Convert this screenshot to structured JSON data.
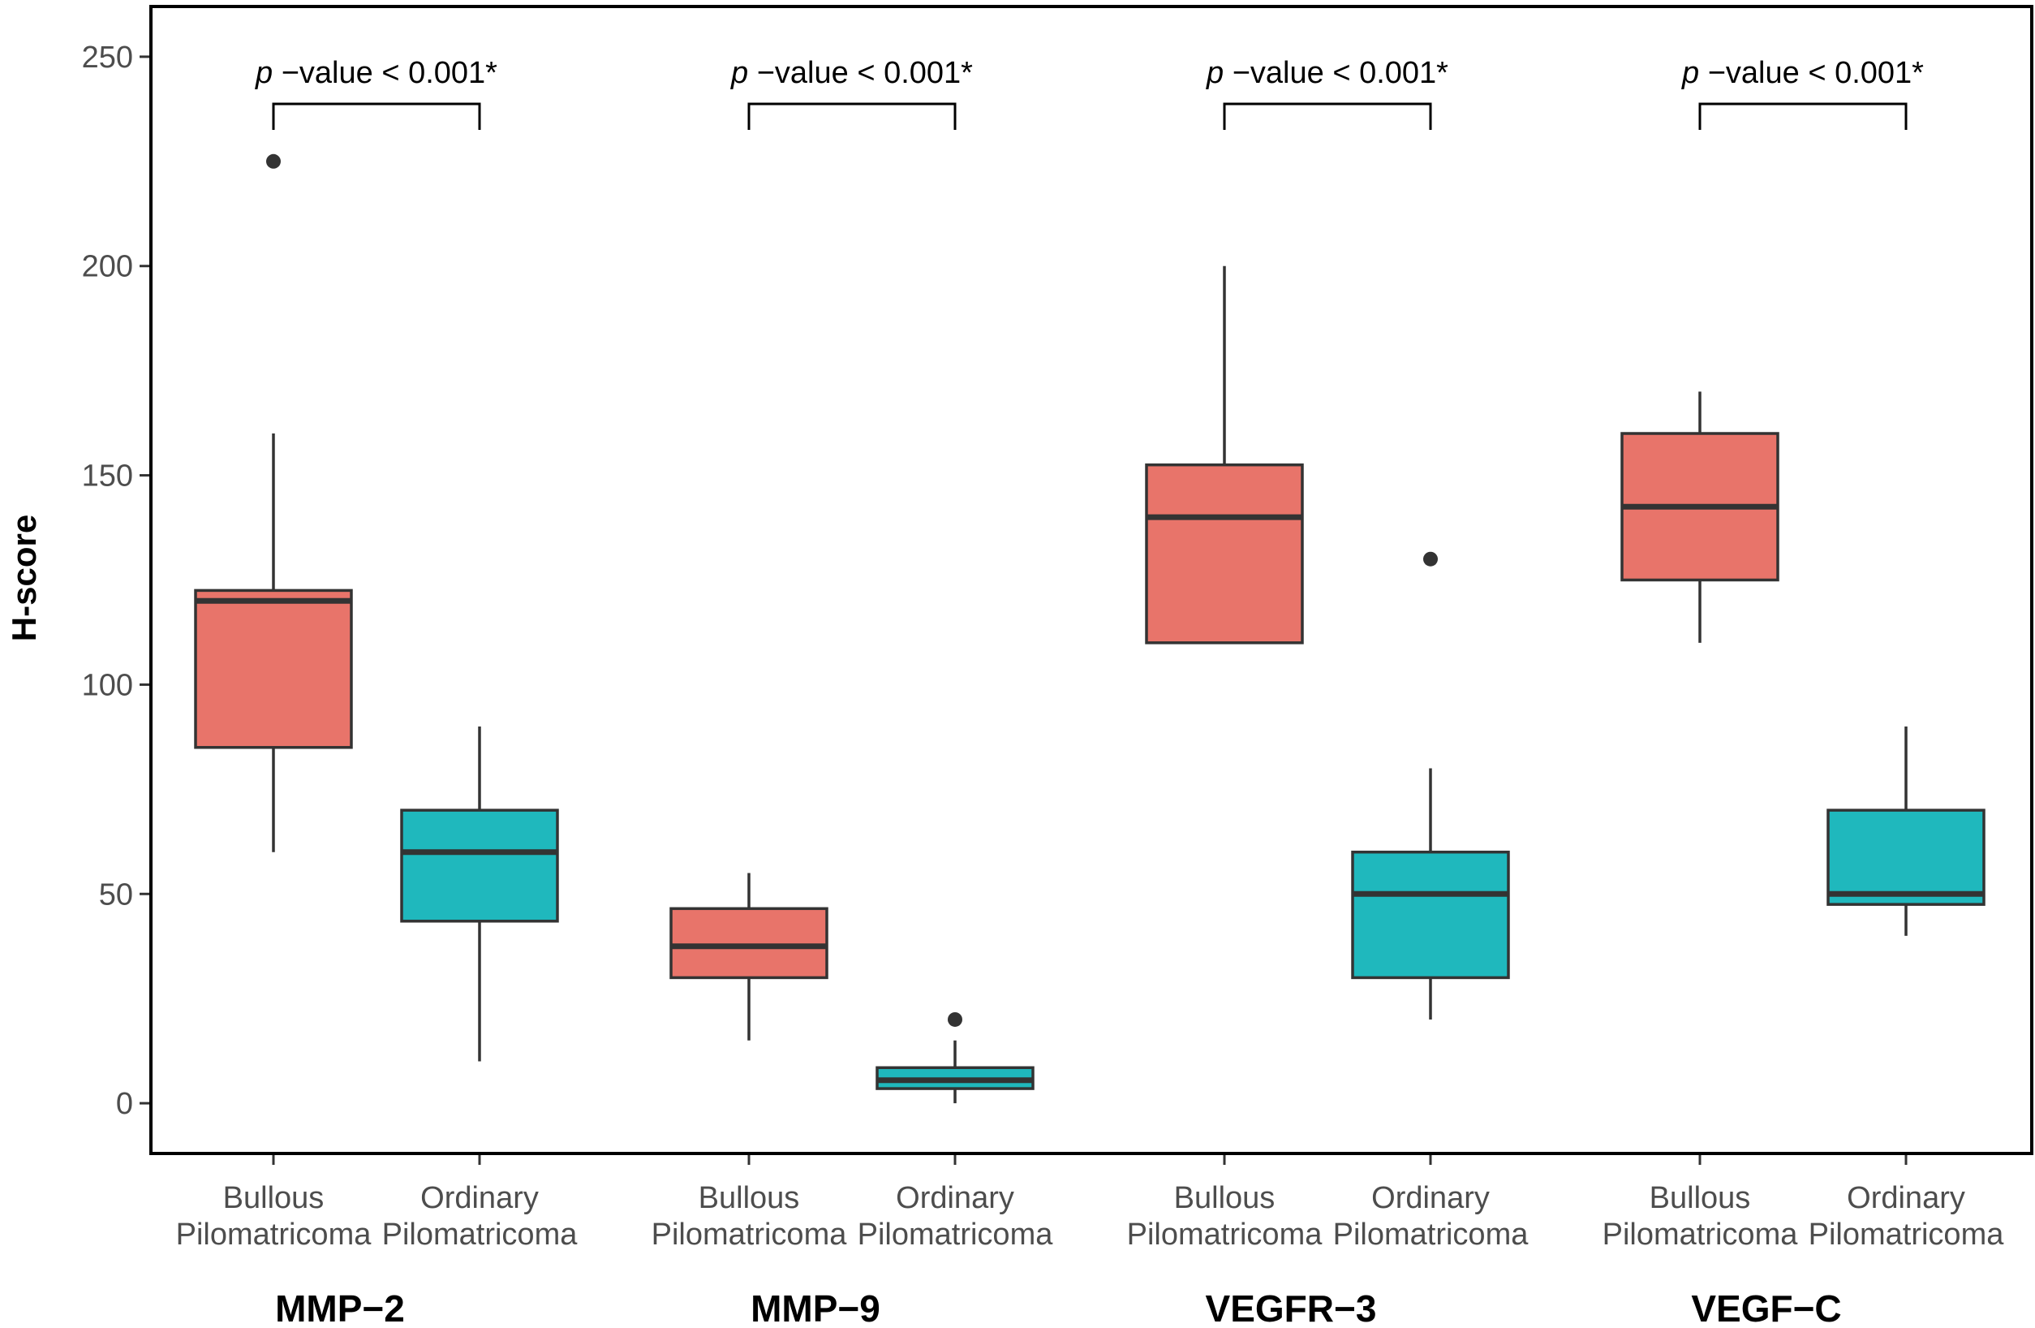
{
  "chart_data": {
    "type": "box",
    "ylabel": "H-score",
    "ylim": [
      -12,
      262
    ],
    "yticks": [
      0,
      50,
      100,
      150,
      200,
      250
    ],
    "grid": false,
    "legend": "none",
    "category_labels": {
      "bullous": [
        "Bullous",
        "Pilomatricoma"
      ],
      "ordinary": [
        "Ordinary",
        "Pilomatricoma"
      ]
    },
    "colors": {
      "Bullous": "#E8746A",
      "Ordinary": "#1FB8BD",
      "stroke": "#333333"
    },
    "panels": [
      {
        "name": "MMP−2",
        "p_label": "−value < 0.001*",
        "boxes": [
          {
            "group": "Bullous",
            "whisker_low": 60,
            "q1": 85,
            "median": 120,
            "q3": 122.5,
            "whisker_high": 160,
            "outliers": [
              225
            ]
          },
          {
            "group": "Ordinary",
            "whisker_low": 10,
            "q1": 43.5,
            "median": 60,
            "q3": 70,
            "whisker_high": 90,
            "outliers": []
          }
        ]
      },
      {
        "name": "MMP−9",
        "p_label": "−value < 0.001*",
        "boxes": [
          {
            "group": "Bullous",
            "whisker_low": 15,
            "q1": 30,
            "median": 37.5,
            "q3": 46.5,
            "whisker_high": 55,
            "outliers": []
          },
          {
            "group": "Ordinary",
            "whisker_low": 0,
            "q1": 3.5,
            "median": 5.5,
            "q3": 8.5,
            "whisker_high": 15,
            "outliers": [
              20
            ]
          }
        ]
      },
      {
        "name": "VEGFR−3",
        "p_label": "−value < 0.001*",
        "boxes": [
          {
            "group": "Bullous",
            "whisker_low": 110,
            "q1": 110,
            "median": 140,
            "q3": 152.5,
            "whisker_high": 200,
            "outliers": []
          },
          {
            "group": "Ordinary",
            "whisker_low": 20,
            "q1": 30,
            "median": 50,
            "q3": 60,
            "whisker_high": 80,
            "outliers": [
              130
            ]
          }
        ]
      },
      {
        "name": "VEGF−C",
        "p_label": "−value < 0.001*",
        "boxes": [
          {
            "group": "Bullous",
            "whisker_low": 110,
            "q1": 125,
            "median": 142.5,
            "q3": 160,
            "whisker_high": 170,
            "outliers": []
          },
          {
            "group": "Ordinary",
            "whisker_low": 40,
            "q1": 47.5,
            "median": 50,
            "q3": 70,
            "whisker_high": 90,
            "outliers": []
          }
        ]
      }
    ]
  }
}
